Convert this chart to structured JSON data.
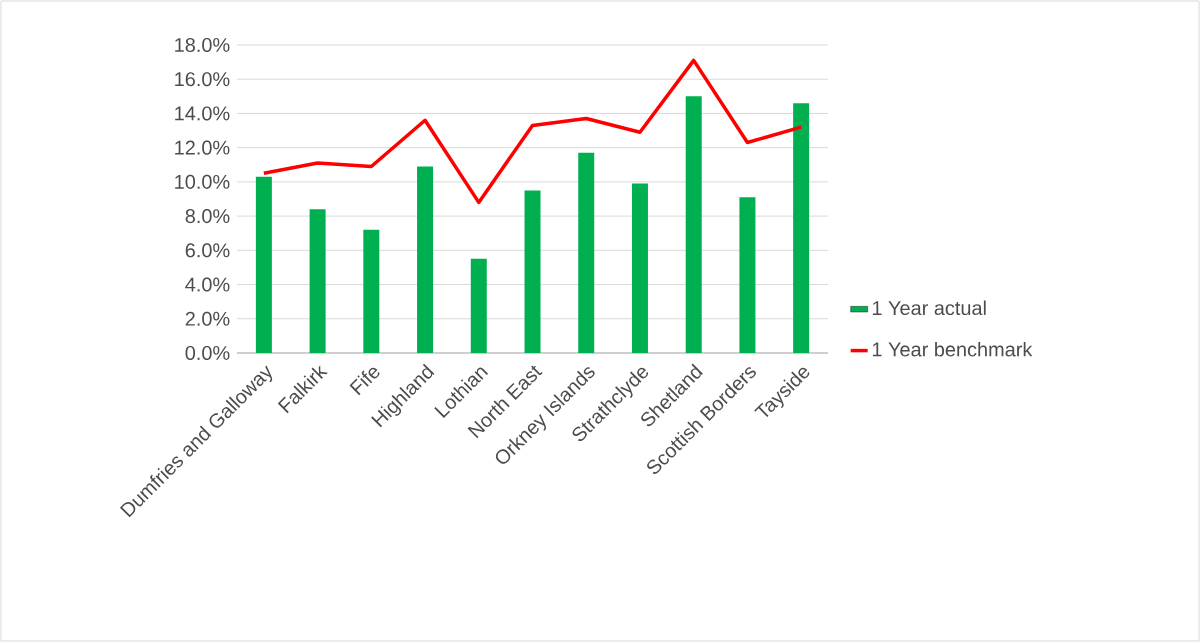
{
  "chart_data": {
    "type": "bar",
    "categories": [
      "Dumfries and Galloway",
      "Falkirk",
      "Fife",
      "Highland",
      "Lothian",
      "North East",
      "Orkney Islands",
      "Strathclyde",
      "Shetland",
      "Scottish Borders",
      "Tayside"
    ],
    "series": [
      {
        "name": "1 Year actual",
        "color": "#00b050",
        "values": [
          10.3,
          8.4,
          7.2,
          10.9,
          5.5,
          9.5,
          11.7,
          9.9,
          15.0,
          9.1,
          14.6
        ]
      },
      {
        "name": "1 Year benchmark",
        "type": "line",
        "color": "#ff0000",
        "values": [
          10.5,
          11.1,
          10.9,
          13.6,
          8.8,
          13.3,
          13.7,
          12.9,
          17.1,
          12.3,
          13.2
        ]
      }
    ],
    "ylim": [
      0,
      18
    ],
    "yticks": [
      {
        "value": 0,
        "label": "0.0%"
      },
      {
        "value": 2,
        "label": "2.0%"
      },
      {
        "value": 4,
        "label": "4.0%"
      },
      {
        "value": 6,
        "label": "6.0%"
      },
      {
        "value": 8,
        "label": "8.0%"
      },
      {
        "value": 10,
        "label": "10.0%"
      },
      {
        "value": 12,
        "label": "12.0%"
      },
      {
        "value": 14,
        "label": "14.0%"
      },
      {
        "value": 16,
        "label": "16.0%"
      },
      {
        "value": 18,
        "label": "18.0%"
      }
    ],
    "grid": "y",
    "legend": "right",
    "marker": "none",
    "line_style": "solid"
  }
}
